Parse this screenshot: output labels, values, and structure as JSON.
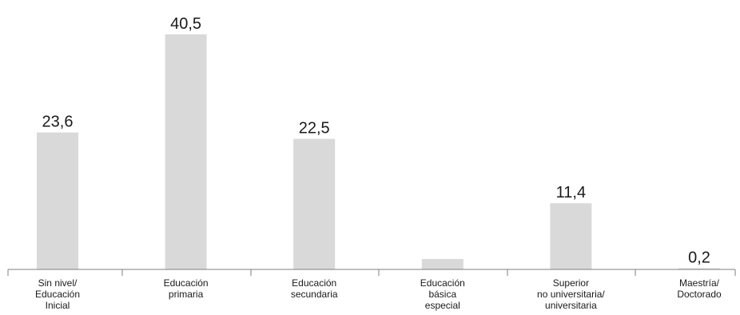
{
  "chart_data": {
    "type": "bar",
    "categories": [
      [
        "Sin nivel/",
        "Educación",
        "Inicial"
      ],
      [
        "Educación",
        "primaria"
      ],
      [
        "Educación",
        "secundaria"
      ],
      [
        "Educación",
        "básica",
        "especial"
      ],
      [
        "Superior",
        "no universitaria/",
        "universitaria"
      ],
      [
        "Maestría/",
        "Doctorado"
      ]
    ],
    "values": [
      23.6,
      40.5,
      22.5,
      1.8,
      11.4,
      0.2
    ],
    "data_labels": [
      "23,6",
      "40,5",
      "22,5",
      "",
      "11,4",
      "0,2"
    ],
    "title": "",
    "xlabel": "",
    "ylabel": "",
    "ylim": [
      0,
      40.5
    ],
    "grid": false,
    "bar_color": "#d9d9d9",
    "axis_color": "#7f7f7f",
    "text_color": "#1a1a1a"
  }
}
